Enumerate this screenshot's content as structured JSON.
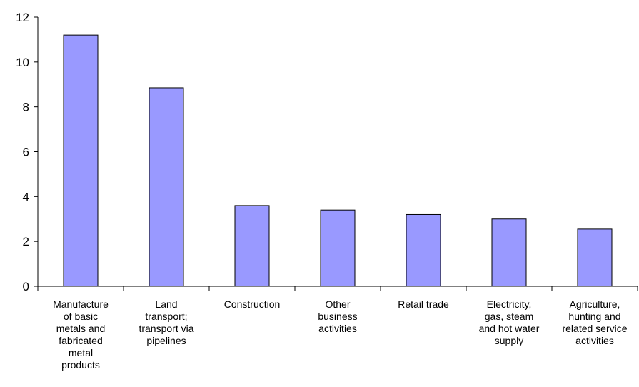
{
  "chart_data": {
    "type": "bar",
    "title": "",
    "xlabel": "",
    "ylabel": "",
    "ylim": [
      0,
      12
    ],
    "yticks": [
      0,
      2,
      4,
      6,
      8,
      10,
      12
    ],
    "grid": false,
    "bar_color": "#9999ff",
    "categories": [
      "Manufacture\nof basic\nmetals and\nfabricated\nmetal\nproducts",
      "Land\ntransport;\ntransport via\npipelines",
      "Construction",
      "Other\nbusiness\nactivities",
      "Retail trade",
      "Electricity,\ngas, steam\nand hot water\nsupply",
      "Agriculture,\nhunting and\nrelated service\nactivities"
    ],
    "values": [
      11.2,
      8.85,
      3.6,
      3.4,
      3.2,
      3.0,
      2.55
    ]
  }
}
